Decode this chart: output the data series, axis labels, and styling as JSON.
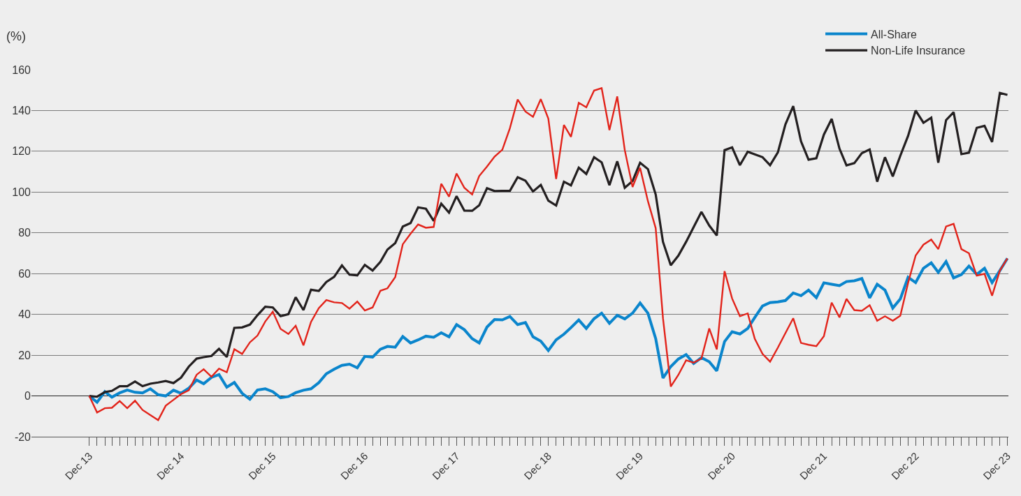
{
  "chart_data": {
    "type": "line",
    "ylabel": "(%)",
    "x": [
      "2013-12",
      "2014-01",
      "2014-02",
      "2014-03",
      "2014-04",
      "2014-05",
      "2014-06",
      "2014-07",
      "2014-08",
      "2014-09",
      "2014-10",
      "2014-11",
      "2014-12",
      "2015-01",
      "2015-02",
      "2015-03",
      "2015-04",
      "2015-05",
      "2015-06",
      "2015-07",
      "2015-08",
      "2015-09",
      "2015-10",
      "2015-11",
      "2015-12",
      "2016-01",
      "2016-02",
      "2016-03",
      "2016-04",
      "2016-05",
      "2016-06",
      "2016-07",
      "2016-08",
      "2016-09",
      "2016-10",
      "2016-11",
      "2016-12",
      "2017-01",
      "2017-02",
      "2017-03",
      "2017-04",
      "2017-05",
      "2017-06",
      "2017-07",
      "2017-08",
      "2017-09",
      "2017-10",
      "2017-11",
      "2017-12",
      "2018-01",
      "2018-02",
      "2018-03",
      "2018-04",
      "2018-05",
      "2018-06",
      "2018-07",
      "2018-08",
      "2018-09",
      "2018-10",
      "2018-11",
      "2018-12",
      "2019-01",
      "2019-02",
      "2019-03",
      "2019-04",
      "2019-05",
      "2019-06",
      "2019-07",
      "2019-08",
      "2019-09",
      "2019-10",
      "2019-11",
      "2019-12",
      "2020-01",
      "2020-02",
      "2020-03",
      "2020-04",
      "2020-05",
      "2020-06",
      "2020-07",
      "2020-08",
      "2020-09",
      "2020-10",
      "2020-11",
      "2020-12",
      "2021-01",
      "2021-02",
      "2021-03",
      "2021-04",
      "2021-05",
      "2021-06",
      "2021-07",
      "2021-08",
      "2021-09",
      "2021-10",
      "2021-11",
      "2021-12",
      "2022-01",
      "2022-02",
      "2022-03",
      "2022-04",
      "2022-05",
      "2022-06",
      "2022-07",
      "2022-08",
      "2022-09",
      "2022-10",
      "2022-11",
      "2022-12",
      "2023-01",
      "2023-02",
      "2023-03",
      "2023-04",
      "2023-05",
      "2023-06",
      "2023-07",
      "2023-08",
      "2023-09",
      "2023-10",
      "2023-11",
      "2023-12"
    ],
    "series": [
      {
        "name": "All-Share",
        "color": "#0a85cc",
        "values": [
          0,
          -3.1,
          2.1,
          -0.6,
          1.5,
          2.9,
          1.8,
          1.5,
          3.5,
          0.6,
          0,
          2.8,
          1.3,
          3.8,
          7.8,
          6,
          9.1,
          10.5,
          4.3,
          6.6,
          1.3,
          -1.6,
          2.9,
          3.5,
          2.1,
          -0.9,
          -0.3,
          1.6,
          2.8,
          3.5,
          6.5,
          10.9,
          13.1,
          15,
          15.6,
          13.8,
          19.4,
          19,
          22.9,
          24.3,
          23.9,
          29.1,
          26,
          27.5,
          29.3,
          28.8,
          31,
          29,
          35,
          32.5,
          28.1,
          26,
          33.8,
          37.5,
          37.3,
          39,
          35,
          36,
          29,
          26.9,
          22.3,
          27.5,
          30.3,
          33.5,
          37.3,
          33.1,
          37.9,
          40.6,
          35.6,
          39.6,
          37.8,
          40.6,
          45.6,
          40.6,
          28.1,
          8.8,
          14.4,
          18.1,
          20.3,
          15.9,
          18.8,
          16.8,
          12.3,
          26.7,
          31.5,
          30.4,
          33.1,
          38.5,
          44.1,
          45.8,
          46.1,
          46.8,
          50.5,
          49.2,
          51.9,
          48.2,
          55.5,
          54.8,
          54.1,
          56.1,
          56.5,
          57.6,
          48.1,
          54.8,
          51.9,
          43.1,
          47.6,
          58.2,
          55.6,
          62.6,
          65.3,
          60.6,
          65.9,
          57.9,
          59.5,
          63.7,
          59.6,
          62.6,
          55.6,
          61.5,
          67.5
        ]
      },
      {
        "name": "Non-Life Insurance",
        "color": "#231f20",
        "values": [
          0,
          -0.4,
          1.9,
          2.5,
          4.8,
          4.8,
          7.1,
          4.8,
          6,
          6.6,
          7.3,
          6.3,
          9,
          14.4,
          18.3,
          19,
          19.6,
          23.1,
          19.1,
          33.4,
          33.6,
          35,
          39.6,
          43.8,
          43.4,
          39.1,
          40.1,
          48.4,
          42.1,
          52.1,
          51.5,
          55.9,
          58.4,
          64,
          59.5,
          59.1,
          64.3,
          61.5,
          65.8,
          71.8,
          75,
          83.1,
          84.8,
          92.5,
          91.8,
          85.9,
          94.3,
          89.9,
          98,
          90.9,
          90.8,
          93.5,
          101.9,
          100.5,
          100.6,
          100.6,
          107.3,
          105.6,
          100.3,
          103.5,
          95.8,
          93.4,
          105.1,
          103.3,
          112,
          108.9,
          117.1,
          114.6,
          103.4,
          115.1,
          102.1,
          105.4,
          114.4,
          111.3,
          98.8,
          75.6,
          64.1,
          68.8,
          75.6,
          82.8,
          90.3,
          83.6,
          78.7,
          120.6,
          121.9,
          113.2,
          119.8,
          118.5,
          117.1,
          113.2,
          119.5,
          133.2,
          142.2,
          124.9,
          115.9,
          116.6,
          128.2,
          135.9,
          121.3,
          113.1,
          114.2,
          119.1,
          120.9,
          105.1,
          117.1,
          107.7,
          117.8,
          127.6,
          140,
          134,
          136.5,
          114.4,
          135.3,
          139.2,
          118.6,
          119.3,
          131.5,
          132.5,
          124.6,
          148.6,
          147.7
        ]
      },
      {
        "color": "#e2231a",
        "values": [
          0,
          -8.1,
          -6,
          -5.8,
          -2.5,
          -6,
          -2.3,
          -6.9,
          -9.4,
          -11.9,
          -4.8,
          -1.9,
          0.9,
          2.8,
          10.4,
          13.1,
          9.4,
          13.4,
          11.6,
          22.9,
          20.6,
          26.3,
          29.6,
          36.5,
          41.3,
          32.9,
          30.4,
          34.4,
          24.8,
          36.3,
          43.1,
          47,
          45.9,
          45.6,
          42.8,
          46.3,
          41.9,
          43.4,
          51.6,
          52.8,
          58.3,
          74.4,
          79.6,
          84.1,
          82.5,
          82.9,
          104.1,
          97.8,
          109.1,
          102.1,
          98.8,
          107.9,
          112.5,
          117.4,
          120.8,
          131.3,
          145.4,
          139.5,
          136.9,
          145.6,
          136,
          106.4,
          132.9,
          127.1,
          143.8,
          141.6,
          149.8,
          151,
          130.4,
          146.9,
          120.6,
          102.5,
          111.9,
          95.6,
          82.3,
          38.1,
          4.6,
          10.3,
          17.5,
          16.3,
          18.4,
          33.1,
          22.8,
          61.2,
          47.8,
          39.1,
          40.5,
          28.1,
          20.6,
          16.8,
          23.7,
          30.8,
          38.1,
          26,
          25.1,
          24.4,
          29.3,
          45.8,
          38.5,
          47.6,
          42.1,
          41.8,
          44.5,
          36.9,
          39.1,
          36.9,
          39.4,
          55.5,
          68.9,
          74.2,
          76.7,
          72,
          83.1,
          84.4,
          72,
          70,
          59,
          59.9,
          49.2,
          61.5,
          67.5
        ]
      }
    ],
    "xlim": [
      "2013-04-15",
      "2023-12-05"
    ],
    "xticks": [
      {
        "value": "2013-12",
        "label": "Dec 13"
      },
      {
        "value": "2014-01",
        "label": null
      },
      {
        "value": "2014-02",
        "label": null
      },
      {
        "value": "2014-03",
        "label": null
      },
      {
        "value": "2014-04",
        "label": null
      },
      {
        "value": "2014-05",
        "label": null
      },
      {
        "value": "2014-06",
        "label": null
      },
      {
        "value": "2014-07",
        "label": null
      },
      {
        "value": "2014-08",
        "label": null
      },
      {
        "value": "2014-09",
        "label": null
      },
      {
        "value": "2014-10",
        "label": null
      },
      {
        "value": "2014-11",
        "label": null
      },
      {
        "value": "2014-12",
        "label": "Dec 14"
      },
      {
        "value": "2015-01",
        "label": null
      },
      {
        "value": "2015-02",
        "label": null
      },
      {
        "value": "2015-03",
        "label": null
      },
      {
        "value": "2015-04",
        "label": null
      },
      {
        "value": "2015-05",
        "label": null
      },
      {
        "value": "2015-06",
        "label": null
      },
      {
        "value": "2015-07",
        "label": null
      },
      {
        "value": "2015-08",
        "label": null
      },
      {
        "value": "2015-09",
        "label": null
      },
      {
        "value": "2015-10",
        "label": null
      },
      {
        "value": "2015-11",
        "label": null
      },
      {
        "value": "2015-12",
        "label": "Dec 15"
      },
      {
        "value": "2016-01",
        "label": null
      },
      {
        "value": "2016-02",
        "label": null
      },
      {
        "value": "2016-03",
        "label": null
      },
      {
        "value": "2016-04",
        "label": null
      },
      {
        "value": "2016-05",
        "label": null
      },
      {
        "value": "2016-06",
        "label": null
      },
      {
        "value": "2016-07",
        "label": null
      },
      {
        "value": "2016-08",
        "label": null
      },
      {
        "value": "2016-09",
        "label": null
      },
      {
        "value": "2016-10",
        "label": null
      },
      {
        "value": "2016-11",
        "label": null
      },
      {
        "value": "2016-12",
        "label": "Dec 16"
      },
      {
        "value": "2017-01",
        "label": null
      },
      {
        "value": "2017-02",
        "label": null
      },
      {
        "value": "2017-03",
        "label": null
      },
      {
        "value": "2017-04",
        "label": null
      },
      {
        "value": "2017-05",
        "label": null
      },
      {
        "value": "2017-06",
        "label": null
      },
      {
        "value": "2017-07",
        "label": null
      },
      {
        "value": "2017-08",
        "label": null
      },
      {
        "value": "2017-09",
        "label": null
      },
      {
        "value": "2017-10",
        "label": null
      },
      {
        "value": "2017-11",
        "label": null
      },
      {
        "value": "2017-12",
        "label": "Dec 17"
      },
      {
        "value": "2018-01",
        "label": null
      },
      {
        "value": "2018-02",
        "label": null
      },
      {
        "value": "2018-03",
        "label": null
      },
      {
        "value": "2018-04",
        "label": null
      },
      {
        "value": "2018-05",
        "label": null
      },
      {
        "value": "2018-06",
        "label": null
      },
      {
        "value": "2018-07",
        "label": null
      },
      {
        "value": "2018-08",
        "label": null
      },
      {
        "value": "2018-09",
        "label": null
      },
      {
        "value": "2018-10",
        "label": null
      },
      {
        "value": "2018-11",
        "label": null
      },
      {
        "value": "2018-12",
        "label": "Dec 18"
      },
      {
        "value": "2019-01",
        "label": null
      },
      {
        "value": "2019-02",
        "label": null
      },
      {
        "value": "2019-03",
        "label": null
      },
      {
        "value": "2019-04",
        "label": null
      },
      {
        "value": "2019-05",
        "label": null
      },
      {
        "value": "2019-06",
        "label": null
      },
      {
        "value": "2019-07",
        "label": null
      },
      {
        "value": "2019-08",
        "label": null
      },
      {
        "value": "2019-09",
        "label": null
      },
      {
        "value": "2019-10",
        "label": null
      },
      {
        "value": "2019-11",
        "label": null
      },
      {
        "value": "2019-12",
        "label": "Dec 19"
      },
      {
        "value": "2020-01",
        "label": null
      },
      {
        "value": "2020-02",
        "label": null
      },
      {
        "value": "2020-03",
        "label": null
      },
      {
        "value": "2020-04",
        "label": null
      },
      {
        "value": "2020-05",
        "label": null
      },
      {
        "value": "2020-06",
        "label": null
      },
      {
        "value": "2020-07",
        "label": null
      },
      {
        "value": "2020-08",
        "label": null
      },
      {
        "value": "2020-09",
        "label": null
      },
      {
        "value": "2020-10",
        "label": null
      },
      {
        "value": "2020-11",
        "label": null
      },
      {
        "value": "2020-12",
        "label": "Dec 20"
      },
      {
        "value": "2021-01",
        "label": null
      },
      {
        "value": "2021-02",
        "label": null
      },
      {
        "value": "2021-03",
        "label": null
      },
      {
        "value": "2021-04",
        "label": null
      },
      {
        "value": "2021-05",
        "label": null
      },
      {
        "value": "2021-06",
        "label": null
      },
      {
        "value": "2021-07",
        "label": null
      },
      {
        "value": "2021-08",
        "label": null
      },
      {
        "value": "2021-09",
        "label": null
      },
      {
        "value": "2021-10",
        "label": null
      },
      {
        "value": "2021-11",
        "label": null
      },
      {
        "value": "2021-12",
        "label": "Dec 21"
      },
      {
        "value": "2022-01",
        "label": null
      },
      {
        "value": "2022-02",
        "label": null
      },
      {
        "value": "2022-03",
        "label": null
      },
      {
        "value": "2022-04",
        "label": null
      },
      {
        "value": "2022-05",
        "label": null
      },
      {
        "value": "2022-06",
        "label": null
      },
      {
        "value": "2022-07",
        "label": null
      },
      {
        "value": "2022-08",
        "label": null
      },
      {
        "value": "2022-09",
        "label": null
      },
      {
        "value": "2022-10",
        "label": null
      },
      {
        "value": "2022-11",
        "label": null
      },
      {
        "value": "2022-12",
        "label": "Dec 22"
      },
      {
        "value": "2023-01",
        "label": null
      },
      {
        "value": "2023-02",
        "label": null
      },
      {
        "value": "2023-03",
        "label": null
      },
      {
        "value": "2023-04",
        "label": null
      },
      {
        "value": "2023-05",
        "label": null
      },
      {
        "value": "2023-06",
        "label": null
      },
      {
        "value": "2023-07",
        "label": null
      },
      {
        "value": "2023-08",
        "label": null
      },
      {
        "value": "2023-09",
        "label": null
      },
      {
        "value": "2023-10",
        "label": null
      },
      {
        "value": "2023-11",
        "label": null
      },
      {
        "value": "2023-12",
        "label": "Dec 23"
      }
    ],
    "ylim": [
      -20,
      160
    ],
    "yticks": [
      -20,
      0,
      20,
      40,
      60,
      80,
      100,
      120,
      140,
      160
    ],
    "grid": "y",
    "legend": "top right",
    "marker": "none",
    "line_style": "solid"
  }
}
